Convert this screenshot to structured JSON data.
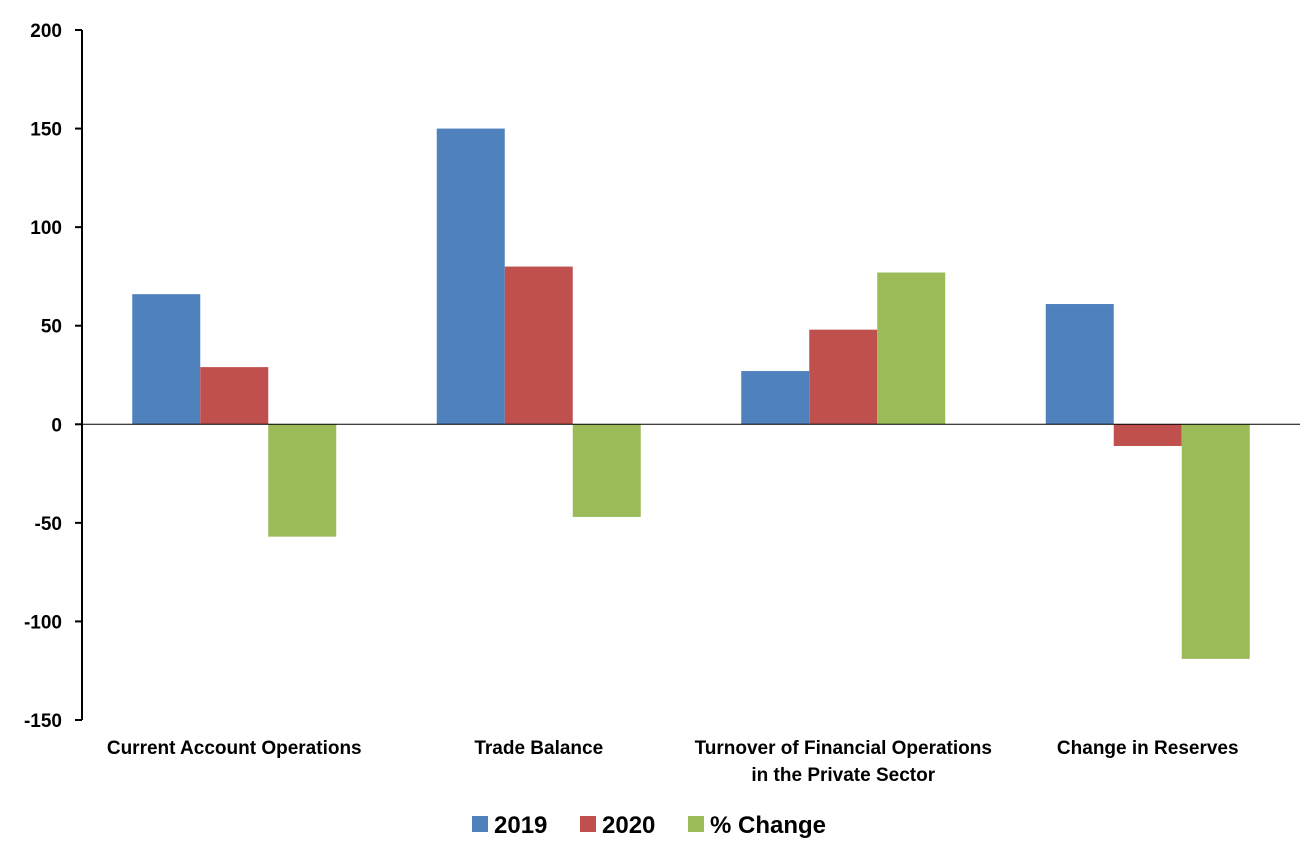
{
  "chart_data": {
    "type": "bar",
    "categories": [
      [
        "Current Account Operations"
      ],
      [
        "Trade Balance"
      ],
      [
        "Turnover of Financial Operations",
        "in the Private Sector"
      ],
      [
        "Change in Reserves"
      ]
    ],
    "series": [
      {
        "name": "2019",
        "color": "#4F81BD",
        "values": [
          66,
          150,
          27,
          61
        ]
      },
      {
        "name": "2020",
        "color": "#C0504D",
        "values": [
          29,
          80,
          48,
          -11
        ]
      },
      {
        "name": "% Change",
        "color": "#9BBB59",
        "values": [
          -57,
          -47,
          77,
          -119
        ]
      }
    ],
    "title": "",
    "xlabel": "",
    "ylabel": "",
    "ylim": [
      -150,
      200
    ],
    "yticks": [
      200,
      150,
      100,
      50,
      0,
      -50,
      -100,
      -150
    ],
    "grid": false,
    "legend_position": "bottom"
  }
}
